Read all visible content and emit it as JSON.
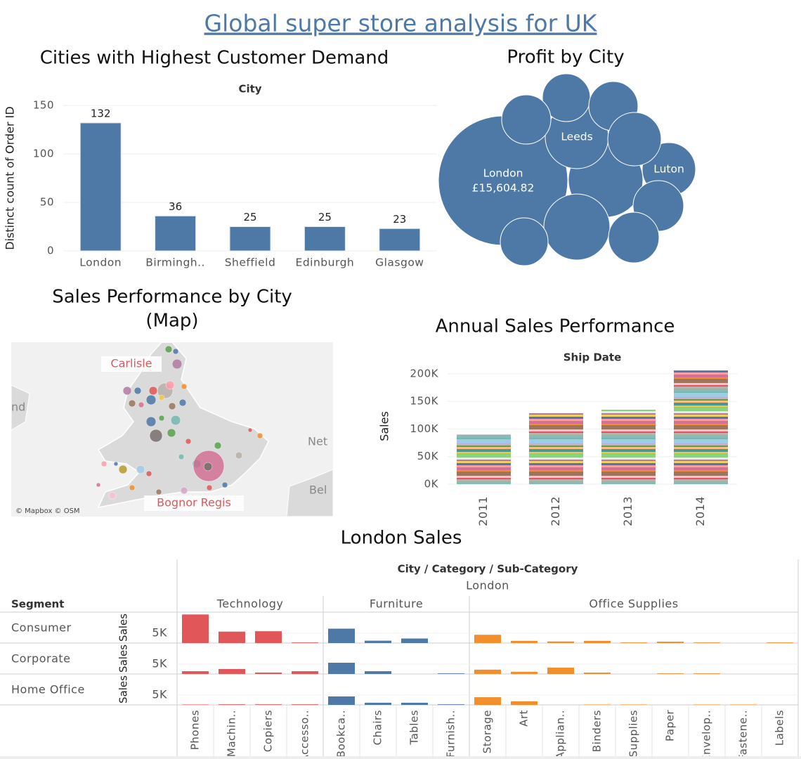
{
  "title": "Global super store analysis for UK",
  "chart_data": [
    {
      "type": "bar",
      "title": "Cities with Highest Customer Demand",
      "x_label": "City",
      "y_label": "Distinct count of Order ID",
      "categories": [
        "London",
        "Birmingh..",
        "Sheffield",
        "Edinburgh",
        "Glasgow"
      ],
      "values": [
        132,
        36,
        25,
        25,
        23
      ],
      "color": "#4e79a7",
      "ylim": [
        0,
        150
      ],
      "yticks": [
        0,
        50,
        100,
        150
      ],
      "grid": true,
      "data_labels": true
    },
    {
      "type": "bubble",
      "title": "Profit by City",
      "categories": [
        "London",
        null,
        "Leeds",
        "Luton",
        null,
        null,
        null,
        null,
        null,
        null,
        null,
        null
      ],
      "values": [
        15604.82,
        5179,
        3734,
        2662,
        2131,
        2259,
        2259,
        2662,
        2389,
        4073,
        2389,
        2131
      ],
      "value_labels": [
        "£15,604.82",
        null,
        null,
        null,
        null,
        null,
        null,
        null,
        null,
        null,
        null,
        null
      ],
      "color": "#4e79a7"
    },
    {
      "type": "map",
      "title": "Sales Performance by City",
      "subtitle": "(Map)",
      "labels": [
        "Carlisle",
        "Bognor Regis"
      ],
      "places": [
        "Net",
        "Bel",
        "nd"
      ],
      "attribution": "© Mapbox © OSM"
    },
    {
      "type": "bar",
      "title": "Annual Sales Performance",
      "x_label": "Ship Date",
      "y_label": "Sales",
      "categories": [
        "2011",
        "2012",
        "2013",
        "2014"
      ],
      "values": [
        90000,
        129000,
        135000,
        206000
      ],
      "ylim": [
        0,
        210000
      ],
      "yticks": [
        {
          "value": 0,
          "label": "0K"
        },
        {
          "value": 50000,
          "label": "50K"
        },
        {
          "value": 100000,
          "label": "100K"
        },
        {
          "value": 150000,
          "label": "150K"
        },
        {
          "value": 200000,
          "label": "200K"
        }
      ],
      "grid": true,
      "data_labels": false
    },
    {
      "type": "bar_matrix",
      "title": "London Sales",
      "header": "City / Category / Sub-Category",
      "city": "London",
      "row_header": "Segment",
      "y_label": "Sales",
      "ylim": [
        0,
        15700
      ],
      "yticks": [
        {
          "value": 5000,
          "label": "5K"
        }
      ],
      "groups": [
        {
          "name": "Technology",
          "color": "#e15759",
          "categories": [
            "Phones",
            "Machin..",
            "Copiers",
            "Accesso.."
          ]
        },
        {
          "name": "Furniture",
          "color": "#4e79a7",
          "categories": [
            "Bookca..",
            "Chairs",
            "Tables",
            "Furnish.."
          ]
        },
        {
          "name": "Office Supplies",
          "color": "#f28e2b",
          "categories": [
            "Storage",
            "Art",
            "Applian..",
            "Binders",
            "Supplies",
            "Paper",
            "Envelop..",
            "Fastene..",
            "Labels"
          ]
        }
      ],
      "series": [
        {
          "name": "Consumer",
          "values": [
            14500,
            5800,
            6000,
            300,
            7300,
            1200,
            2300,
            0,
            4200,
            1100,
            800,
            1100,
            300,
            700,
            300,
            0,
            300
          ]
        },
        {
          "name": "Corporate",
          "values": [
            1400,
            2500,
            700,
            1400,
            5700,
            1400,
            0,
            300,
            2200,
            1100,
            3200,
            700,
            0,
            300,
            300,
            0,
            0
          ]
        },
        {
          "name": "Home Office",
          "values": [
            200,
            300,
            300,
            300,
            4300,
            1100,
            1100,
            300,
            3900,
            1800,
            0,
            200,
            200,
            0,
            200,
            200,
            0
          ]
        }
      ]
    }
  ]
}
